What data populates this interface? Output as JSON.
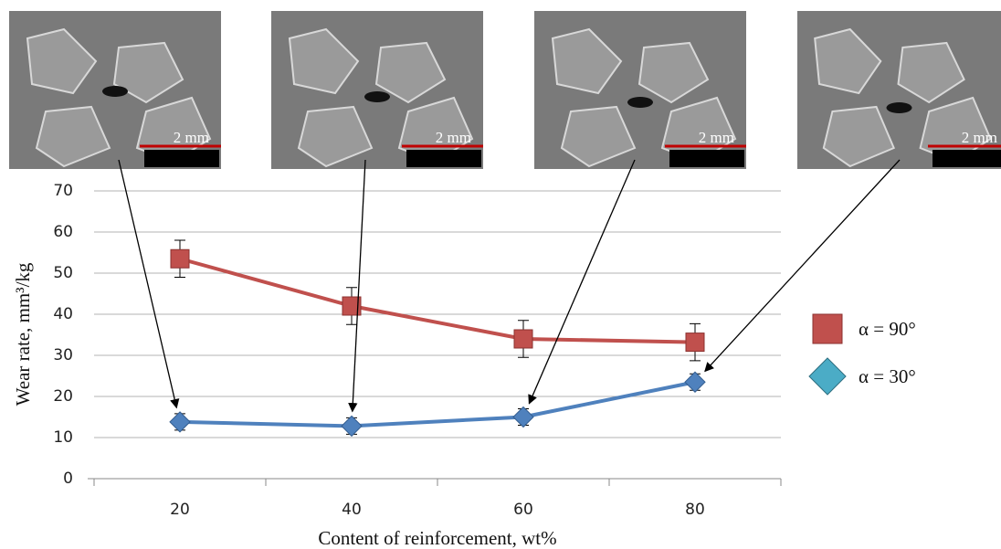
{
  "chart_data": {
    "type": "line",
    "categories": [
      "20",
      "40",
      "60",
      "80"
    ],
    "x_label": "Content of reinforcement, wt%",
    "y_label": "Wear rate, mm³/kg",
    "ylim": [
      0,
      70
    ],
    "yticks": [
      0,
      10,
      20,
      30,
      40,
      50,
      60,
      70
    ],
    "grid": true,
    "legend": "right",
    "series": [
      {
        "name": "α = 90°",
        "color": "#c0504d",
        "marker": "square",
        "values": [
          53.5,
          42,
          34,
          33.2
        ],
        "errors": [
          4.5,
          4.5,
          4.5,
          4.5
        ]
      },
      {
        "name": "α = 30°",
        "color": "#4f81bd",
        "marker": "diamond",
        "values": [
          13.8,
          12.8,
          15,
          23.5
        ],
        "errors": [
          2,
          2,
          2,
          2
        ]
      }
    ]
  },
  "micrographs": [
    {
      "scale": "2 mm"
    },
    {
      "scale": "2 mm"
    },
    {
      "scale": "2 mm"
    },
    {
      "scale": "2 mm"
    }
  ]
}
